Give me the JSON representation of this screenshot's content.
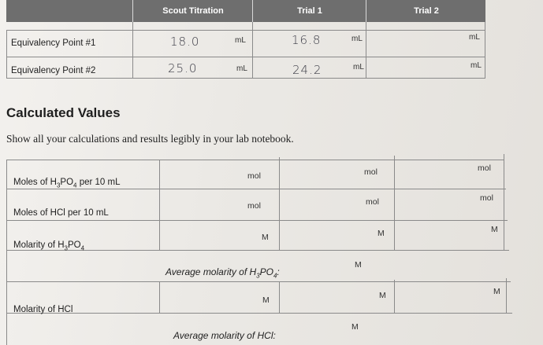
{
  "top_table": {
    "headers": [
      "Scout Titration",
      "Trial 1",
      "Trial 2"
    ],
    "rows": [
      {
        "label": "Equivalency Point #1",
        "scout_value": "18.0",
        "trial1_value": "16.8",
        "trial2_value": "",
        "unit": "mL"
      },
      {
        "label": "Equivalency Point #2",
        "scout_value": "25.0",
        "trial1_value": "24.2",
        "trial2_value": "",
        "unit": "mL"
      }
    ]
  },
  "section": {
    "title": "Calculated Values",
    "instructions": "Show all your calculations and results legibly in your lab notebook."
  },
  "calc_table": {
    "rows": [
      {
        "label_pre": "Moles of H",
        "sub1": "3",
        "label_mid": "PO",
        "sub2": "4",
        "label_post": " per 10 mL",
        "unit": "mol"
      },
      {
        "label_pre": "Moles of HCl per 10 mL",
        "sub1": "",
        "label_mid": "",
        "sub2": "",
        "label_post": "",
        "unit": "mol"
      },
      {
        "label_pre": "Molarity of H",
        "sub1": "3",
        "label_mid": "PO",
        "sub2": "4",
        "label_post": "",
        "unit": "M"
      },
      {
        "label_pre": "Molarity of HCl",
        "sub1": "",
        "label_mid": "",
        "sub2": "",
        "label_post": "",
        "unit": "M"
      }
    ],
    "avg_h3po4": {
      "pre": "Average molarity of H",
      "sub1": "3",
      "mid": "PO",
      "sub2": "4",
      "post": ":",
      "unit": "M"
    },
    "avg_hcl": {
      "text": "Average molarity of HCl:",
      "unit": "M"
    }
  }
}
